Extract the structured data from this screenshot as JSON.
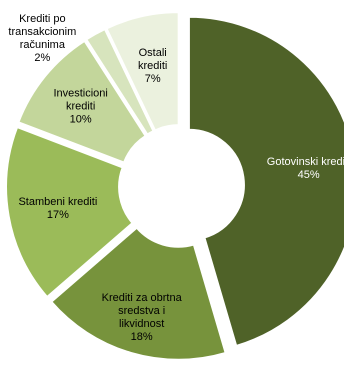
{
  "chart_data": {
    "type": "pie",
    "variant": "doughnut",
    "exploded": true,
    "legend": "none",
    "slices": [
      {
        "label_lines": [
          "Gotovinski krediti",
          "45%"
        ],
        "value": 45,
        "color": "#4F6228",
        "text_color": "#ffffff"
      },
      {
        "label_lines": [
          "Krediti za obrtna",
          "sredstva i",
          "likvidnost",
          "18%"
        ],
        "value": 18,
        "color": "#77933C",
        "text_color": "#000000"
      },
      {
        "label_lines": [
          "Stambeni krediti",
          "17%"
        ],
        "value": 17,
        "color": "#9BBB59",
        "text_color": "#000000"
      },
      {
        "label_lines": [
          "Investicioni",
          "krediti",
          "10%"
        ],
        "value": 10,
        "color": "#C3D69B",
        "text_color": "#000000"
      },
      {
        "label_lines": [
          "Krediti po",
          "transakcionim",
          "računima",
          "2%"
        ],
        "value": 2,
        "color": "#D7E4BD",
        "text_color": "#000000"
      },
      {
        "label_lines": [
          "Ostali",
          "krediti",
          "7%"
        ],
        "value": 7,
        "color": "#EBF1DE",
        "text_color": "#000000"
      }
    ]
  }
}
